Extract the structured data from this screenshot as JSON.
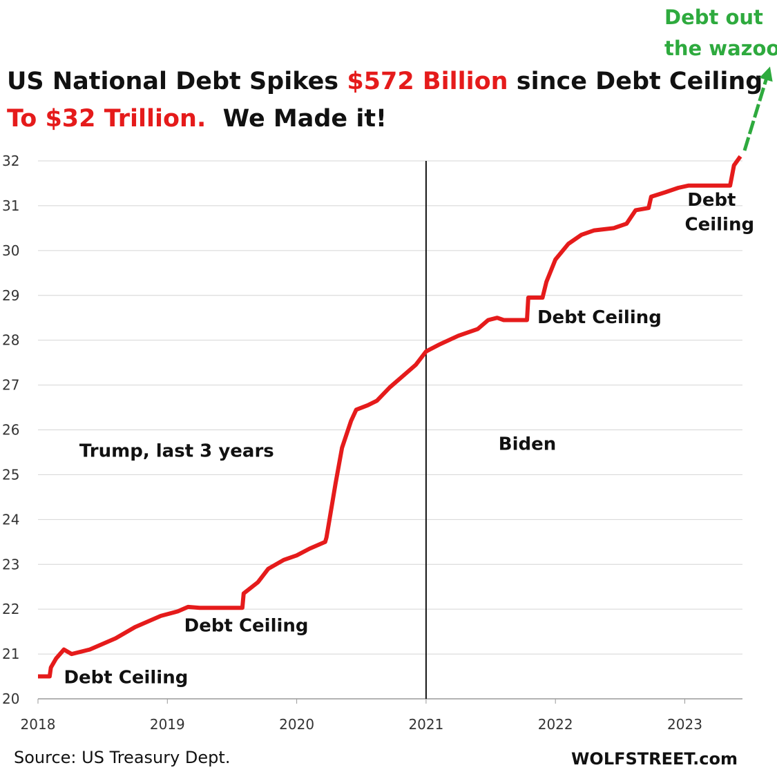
{
  "header": {
    "line1": {
      "part_a": "US National Debt Spikes ",
      "part_b": "$572 Billion",
      "part_c": " since Debt Ceiling"
    },
    "line2": {
      "part_a": "To $32 Trillion.",
      "part_b": "We Made it!"
    }
  },
  "footer": {
    "source": "Source: US Treasury Dept.",
    "brand": "WOLFSTREET.com"
  },
  "chart_data": {
    "type": "line",
    "title": "US National Debt Spikes $572 Billion since Debt Ceiling To $32 Trillion. We Made it!",
    "xlabel": "",
    "ylabel": "",
    "xlim": [
      2018.0,
      2023.45
    ],
    "ylim": [
      20,
      32
    ],
    "x_ticks": [
      "2018",
      "2019",
      "2020",
      "2021",
      "2022",
      "2023"
    ],
    "y_ticks": [
      "20",
      "21",
      "22",
      "23",
      "24",
      "25",
      "26",
      "27",
      "28",
      "29",
      "30",
      "31",
      "32"
    ],
    "grid": "horizontal",
    "vertical_marker_x": 2021.0,
    "series": [
      {
        "color": "#e51b1b",
        "points": [
          [
            2018.0,
            20.5
          ],
          [
            2018.09,
            20.5
          ],
          [
            2018.1,
            20.7
          ],
          [
            2018.14,
            20.9
          ],
          [
            2018.2,
            21.1
          ],
          [
            2018.26,
            21.0
          ],
          [
            2018.4,
            21.1
          ],
          [
            2018.6,
            21.35
          ],
          [
            2018.75,
            21.6
          ],
          [
            2018.95,
            21.85
          ],
          [
            2019.08,
            21.95
          ],
          [
            2019.16,
            22.05
          ],
          [
            2019.25,
            22.03
          ],
          [
            2019.5,
            22.03
          ],
          [
            2019.58,
            22.03
          ],
          [
            2019.59,
            22.35
          ],
          [
            2019.7,
            22.6
          ],
          [
            2019.78,
            22.9
          ],
          [
            2019.9,
            23.1
          ],
          [
            2020.0,
            23.2
          ],
          [
            2020.1,
            23.35
          ],
          [
            2020.22,
            23.5
          ],
          [
            2020.23,
            23.6
          ],
          [
            2020.3,
            24.8
          ],
          [
            2020.35,
            25.6
          ],
          [
            2020.42,
            26.2
          ],
          [
            2020.46,
            26.45
          ],
          [
            2020.55,
            26.55
          ],
          [
            2020.62,
            26.65
          ],
          [
            2020.72,
            26.95
          ],
          [
            2020.82,
            27.2
          ],
          [
            2020.92,
            27.45
          ],
          [
            2021.0,
            27.75
          ],
          [
            2021.1,
            27.9
          ],
          [
            2021.25,
            28.1
          ],
          [
            2021.4,
            28.25
          ],
          [
            2021.48,
            28.45
          ],
          [
            2021.55,
            28.5
          ],
          [
            2021.6,
            28.45
          ],
          [
            2021.78,
            28.45
          ],
          [
            2021.79,
            28.95
          ],
          [
            2021.9,
            28.95
          ],
          [
            2021.93,
            29.3
          ],
          [
            2022.0,
            29.8
          ],
          [
            2022.1,
            30.15
          ],
          [
            2022.2,
            30.35
          ],
          [
            2022.3,
            30.45
          ],
          [
            2022.45,
            30.5
          ],
          [
            2022.55,
            30.6
          ],
          [
            2022.62,
            30.9
          ],
          [
            2022.72,
            30.95
          ],
          [
            2022.74,
            31.2
          ],
          [
            2022.85,
            31.3
          ],
          [
            2022.95,
            31.4
          ],
          [
            2023.03,
            31.45
          ],
          [
            2023.35,
            31.45
          ],
          [
            2023.38,
            31.9
          ],
          [
            2023.43,
            32.1
          ]
        ]
      }
    ],
    "annotations": [
      {
        "text": "Debt Ceiling",
        "x": 2018.2,
        "y": 20.35
      },
      {
        "text": "Debt Ceiling",
        "x": 2019.13,
        "y": 21.5
      },
      {
        "text": "Trump, last 3 years",
        "x": 2018.32,
        "y": 25.4
      },
      {
        "text": "Biden",
        "x": 2021.56,
        "y": 25.55
      },
      {
        "text": "Debt Ceiling",
        "x": 2021.86,
        "y": 28.38
      },
      {
        "text": "Debt",
        "x": 2023.02,
        "y": 31.0
      },
      {
        "text": "Ceiling",
        "x": 2023.0,
        "y": 30.45
      }
    ],
    "callout": {
      "text_line1": "Debt out",
      "text_line2": "the wazoo",
      "color": "#2eaa3e"
    }
  }
}
